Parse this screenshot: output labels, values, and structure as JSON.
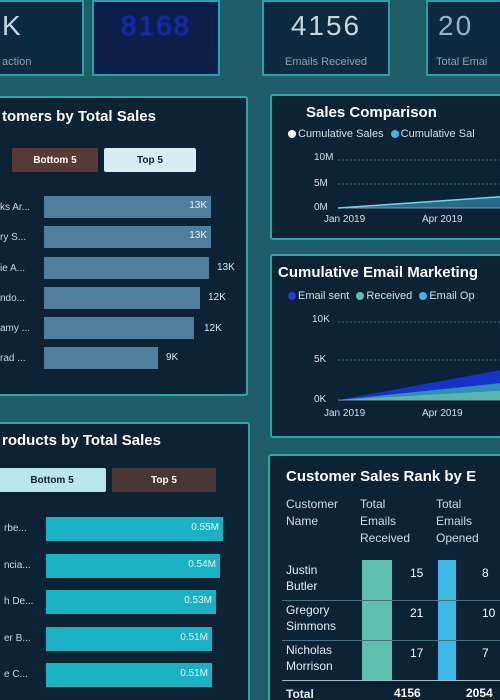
{
  "kpis": [
    {
      "value": "K",
      "label": "action"
    },
    {
      "value": "8168",
      "label": ""
    },
    {
      "value": "4156",
      "label": "Emails Received"
    },
    {
      "value": "20",
      "label": "Total Emai"
    }
  ],
  "customers_panel": {
    "title": "tomers by Total Sales",
    "toggle_bottom": "Bottom 5",
    "toggle_top": "Top 5",
    "rows": [
      {
        "name": "ks Ar...",
        "value": "13K"
      },
      {
        "name": "ry S...",
        "value": "13K"
      },
      {
        "name": "ie A...",
        "value": "13K"
      },
      {
        "name": "ndo...",
        "value": "12K"
      },
      {
        "name": "amy ...",
        "value": "12K"
      },
      {
        "name": "rad ...",
        "value": "9K"
      }
    ]
  },
  "products_panel": {
    "title": "roducts by Total Sales",
    "toggle_bottom": "Bottom 5",
    "toggle_top": "Top 5",
    "rows": [
      {
        "name": "rbe...",
        "value": "0.55M"
      },
      {
        "name": "ncia...",
        "value": "0.54M"
      },
      {
        "name": "h De...",
        "value": "0.53M"
      },
      {
        "name": "er B...",
        "value": "0.51M"
      },
      {
        "name": "e C...",
        "value": "0.51M"
      }
    ]
  },
  "sales_comparison": {
    "title": "Sales Comparison",
    "legend": [
      "Cumulative Sales",
      "Cumulative Sal"
    ],
    "y_ticks": [
      "10M",
      "5M",
      "0M"
    ],
    "x_ticks": [
      "Jan 2019",
      "Apr 2019"
    ]
  },
  "email_marketing": {
    "title": "Cumulative Email Marketing",
    "legend": [
      "Email sent",
      "Received",
      "Email Op"
    ],
    "y_ticks": [
      "10K",
      "5K",
      "0K"
    ],
    "x_ticks": [
      "Jan 2019",
      "Apr 2019"
    ]
  },
  "customer_sales_table": {
    "title": "Customer Sales  Rank by E",
    "headers": [
      "Customer Name",
      "Total Emails Received",
      "Total Emails Opened"
    ],
    "rows": [
      {
        "name": "Justin Butler",
        "received": "15",
        "opened": "8"
      },
      {
        "name": "Gregory Simmons",
        "received": "21",
        "opened": "10"
      },
      {
        "name": "Nicholas Morrison",
        "received": "17",
        "opened": "7"
      }
    ],
    "total_label": "Total",
    "total_received": "4156",
    "total_opened": "2054"
  },
  "colors": {
    "background": "#1f5d68",
    "panel": "#0c2235",
    "border": "#2aa7a7",
    "customer_bar": "#4f7e9f",
    "product_bar": "#1ab1c2",
    "received_bar": "#5fbfae",
    "opened_bar": "#3cb7e6"
  }
}
